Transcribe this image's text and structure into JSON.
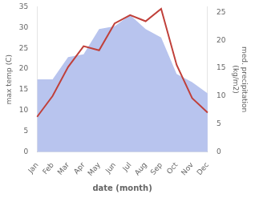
{
  "chart_data": {
    "type": "line",
    "categories": [
      "Jan",
      "Feb",
      "Mar",
      "Apr",
      "May",
      "Jun",
      "Jul",
      "Aug",
      "Sep",
      "Oct",
      "Nov",
      "Dec"
    ],
    "xlabel": "date (month)",
    "ylabel": "max temp (C)",
    "y2label": "med. precipitation\n(kg/m2)",
    "series": [
      {
        "type": "area",
        "axis": "y2",
        "color": "#b8c4ee",
        "values": [
          13.0,
          13.0,
          17.0,
          17.5,
          22.0,
          22.5,
          24.5,
          22.0,
          20.5,
          14.0,
          12.5,
          10.5
        ]
      },
      {
        "type": "line",
        "color": "#c0403a",
        "values": [
          8.5,
          13.5,
          20.5,
          25.5,
          24.5,
          31.0,
          33.0,
          31.5,
          34.5,
          21.0,
          13.0,
          9.5
        ]
      }
    ],
    "ylim": [
      0,
      35
    ],
    "yticks": [
      0,
      5,
      10,
      15,
      20,
      25,
      30,
      35
    ],
    "y2lim": [
      0,
      26
    ],
    "y2ticks": [
      0,
      5,
      10,
      15,
      20,
      25
    ],
    "grid": false
  }
}
